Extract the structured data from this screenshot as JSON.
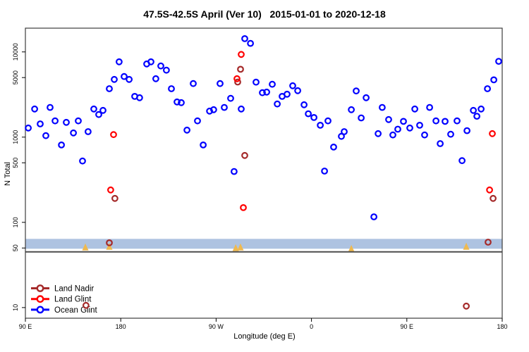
{
  "chart_data": {
    "type": "scatter",
    "title": "47.5S-42.5S April (Ver 10)   2015-01-01 to 2020-12-18",
    "xlabel": "Longitude (deg E)",
    "ylabel": "N Total",
    "x_axis": {
      "lim": [
        90,
        540
      ],
      "ticks": [
        {
          "value": 90,
          "label": "90 E"
        },
        {
          "value": 180,
          "label": "180"
        },
        {
          "value": 270,
          "label": "90 W"
        },
        {
          "value": 360,
          "label": "0"
        },
        {
          "value": 450,
          "label": "90 E"
        },
        {
          "value": 540,
          "label": "180"
        }
      ]
    },
    "y_axis": {
      "scale": "log",
      "lim": [
        7.5,
        19000
      ],
      "ticks": [
        {
          "value": 10,
          "label": "10"
        },
        {
          "value": 50,
          "label": "50"
        },
        {
          "value": 100,
          "label": "100"
        },
        {
          "value": 500,
          "label": "500"
        },
        {
          "value": 1000,
          "label": "1000"
        },
        {
          "value": 5000,
          "label": "5000"
        },
        {
          "value": 10000,
          "label": "10000"
        }
      ]
    },
    "band": {
      "color": "#AEC3E1",
      "y_from": 49,
      "y_to": 64
    },
    "refline": {
      "color": "#4D4D4D",
      "y": 45
    },
    "flag_markers": {
      "shape": "triangle",
      "color": "#EFB94F",
      "points": [
        [
          146.6,
          51
        ],
        [
          169.2,
          52
        ],
        [
          288.5,
          50
        ],
        [
          293,
          51
        ],
        [
          397.6,
          49
        ],
        [
          506.1,
          52
        ]
      ]
    },
    "legend": {
      "position": "bottom-left",
      "entries": [
        "Land Nadir",
        "Land Glint",
        "Ocean Glint"
      ]
    },
    "series": [
      {
        "name": "Land Nadir",
        "color": "#A52A2A",
        "points": [
          [
            147.2,
            10.6
          ],
          [
            169.2,
            57.5
          ],
          [
            174.5,
            191
          ],
          [
            290.4,
            4430
          ],
          [
            293,
            6250
          ],
          [
            297,
            610
          ],
          [
            506.1,
            10.4
          ],
          [
            526.7,
            58.5
          ],
          [
            531.4,
            191
          ]
        ]
      },
      {
        "name": "Land Glint",
        "color": "#FF0000",
        "points": [
          [
            170.5,
            240
          ],
          [
            173.2,
            1070
          ],
          [
            289.7,
            4850
          ],
          [
            293.7,
            9340
          ],
          [
            295.7,
            149
          ],
          [
            528.1,
            240
          ],
          [
            530.7,
            1100
          ]
        ]
      },
      {
        "name": "Ocean Glint",
        "color": "#0000FF",
        "points": [
          [
            92.7,
            1280
          ],
          [
            98.7,
            2140
          ],
          [
            104,
            1430
          ],
          [
            109.3,
            1040
          ],
          [
            113.3,
            2230
          ],
          [
            118,
            1550
          ],
          [
            124,
            810
          ],
          [
            128.6,
            1490
          ],
          [
            135.3,
            1120
          ],
          [
            139.9,
            1550
          ],
          [
            143.9,
            525
          ],
          [
            149.2,
            1160
          ],
          [
            154.6,
            2140
          ],
          [
            159.2,
            1840
          ],
          [
            163.2,
            2060
          ],
          [
            169.2,
            3700
          ],
          [
            173.9,
            4760
          ],
          [
            178.5,
            7660
          ],
          [
            183.2,
            5140
          ],
          [
            187.9,
            4760
          ],
          [
            193.2,
            3010
          ],
          [
            197.8,
            2900
          ],
          [
            204.5,
            7230
          ],
          [
            208.5,
            7660
          ],
          [
            213.1,
            4850
          ],
          [
            217.8,
            6840
          ],
          [
            223.1,
            6100
          ],
          [
            227.8,
            3700
          ],
          [
            233.1,
            2590
          ],
          [
            237.1,
            2540
          ],
          [
            242.5,
            1210
          ],
          [
            248.4,
            4250
          ],
          [
            252.4,
            1550
          ],
          [
            257.8,
            810
          ],
          [
            263.8,
            2020
          ],
          [
            267.7,
            2100
          ],
          [
            273.7,
            4250
          ],
          [
            277.7,
            2230
          ],
          [
            283.7,
            2850
          ],
          [
            287,
            395
          ],
          [
            293.7,
            2140
          ],
          [
            297,
            14300
          ],
          [
            302.4,
            12600
          ],
          [
            307.7,
            4420
          ],
          [
            313.7,
            3320
          ],
          [
            317.7,
            3380
          ],
          [
            323,
            4170
          ],
          [
            327.7,
            2450
          ],
          [
            332.3,
            3010
          ],
          [
            337,
            3190
          ],
          [
            342.3,
            4010
          ],
          [
            347,
            3510
          ],
          [
            353,
            2400
          ],
          [
            357,
            1880
          ],
          [
            362.3,
            1700
          ],
          [
            368.3,
            1380
          ],
          [
            372.3,
            400
          ],
          [
            375.6,
            1550
          ],
          [
            380.9,
            765
          ],
          [
            388.2,
            1020
          ],
          [
            390.9,
            1160
          ],
          [
            397.6,
            2100
          ],
          [
            402.2,
            3480
          ],
          [
            406.9,
            1680
          ],
          [
            411.6,
            2900
          ],
          [
            418.9,
            116
          ],
          [
            422.9,
            1100
          ],
          [
            426.8,
            2230
          ],
          [
            432.8,
            1610
          ],
          [
            436.8,
            1060
          ],
          [
            441.5,
            1240
          ],
          [
            446.8,
            1530
          ],
          [
            452.8,
            1280
          ],
          [
            457.5,
            2140
          ],
          [
            462.1,
            1380
          ],
          [
            466.8,
            1060
          ],
          [
            471.5,
            2230
          ],
          [
            477.5,
            1550
          ],
          [
            481.5,
            840
          ],
          [
            486.1,
            1530
          ],
          [
            491.4,
            1080
          ],
          [
            497.4,
            1550
          ],
          [
            502.1,
            530
          ],
          [
            506.8,
            1190
          ],
          [
            512.8,
            2060
          ],
          [
            516.1,
            1760
          ],
          [
            520.1,
            2140
          ],
          [
            526.1,
            3700
          ],
          [
            532.1,
            4700
          ],
          [
            536.7,
            7760
          ]
        ]
      }
    ]
  }
}
